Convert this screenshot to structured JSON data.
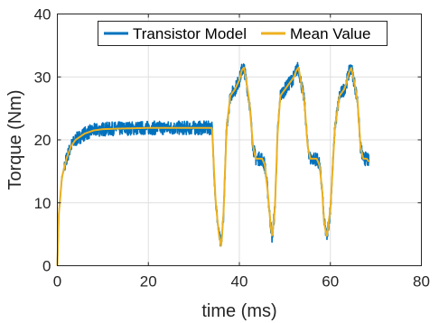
{
  "chart_data": {
    "type": "line",
    "title": "",
    "xlabel": "time (ms)",
    "ylabel": "Torque (Nm)",
    "xlim": [
      0,
      80
    ],
    "ylim": [
      0,
      40
    ],
    "xticks": [
      0,
      20,
      40,
      60,
      80
    ],
    "yticks": [
      0,
      10,
      20,
      30,
      40
    ],
    "grid": true,
    "legend_position": "top-center",
    "series": [
      {
        "name": "Transistor Model",
        "color": "#0072BD",
        "style": "noisy band around mean",
        "x": [
          0,
          0.3,
          1,
          2,
          3,
          4,
          6,
          8,
          10,
          14,
          20,
          26,
          30,
          34,
          34.3,
          34.8,
          35.5,
          36,
          36.5,
          37.2,
          38,
          39,
          40,
          40.5,
          41,
          41.6,
          42.2,
          43,
          43.6,
          44.2,
          45,
          45.6,
          46.2,
          46.8,
          47.2,
          47.8,
          48.4,
          49,
          50,
          51,
          52,
          52.5,
          53,
          53.6,
          54.3,
          55,
          55.6,
          56.2,
          57,
          57.6,
          58.2,
          58.6,
          59.2,
          60,
          61,
          62,
          63,
          63.5,
          64,
          64.6,
          65.3,
          66,
          66.6,
          67.2,
          68,
          68.5
        ],
        "y": [
          0,
          8,
          14,
          17,
          19,
          20,
          21,
          21.5,
          21.7,
          21.8,
          21.9,
          21.9,
          21.9,
          21.9,
          17,
          10,
          5,
          3,
          8,
          22,
          27,
          28,
          29.5,
          31,
          31.5,
          29,
          26,
          19,
          17,
          17,
          17,
          16,
          12,
          7,
          4.5,
          9,
          21,
          27,
          28,
          29,
          30,
          31,
          31.5,
          29,
          26,
          19,
          17,
          17,
          17,
          16,
          12,
          7,
          4.5,
          9,
          22,
          27,
          28,
          29,
          30.5,
          31.5,
          29,
          26,
          19,
          17,
          17,
          16.5
        ]
      },
      {
        "name": "Mean Value",
        "color": "#EDB120",
        "style": "smooth line",
        "x": [
          0,
          0.3,
          1,
          2,
          3,
          4,
          6,
          8,
          10,
          14,
          20,
          26,
          30,
          34,
          34.3,
          34.8,
          35.5,
          36,
          36.5,
          37.2,
          38,
          39,
          40,
          40.5,
          41,
          41.6,
          42.2,
          43,
          43.6,
          44.2,
          45,
          45.6,
          46.2,
          46.8,
          47.2,
          47.8,
          48.4,
          49,
          50,
          51,
          52,
          52.5,
          53,
          53.6,
          54.3,
          55,
          55.6,
          56.2,
          57,
          57.6,
          58.2,
          58.6,
          59.2,
          60,
          61,
          62,
          63,
          63.5,
          64,
          64.6,
          65.3,
          66,
          66.6,
          67.2,
          68,
          68.5
        ],
        "y": [
          0,
          8,
          14,
          17,
          19,
          20,
          21,
          21.5,
          21.7,
          21.8,
          21.9,
          21.9,
          21.9,
          21.9,
          17,
          10,
          5,
          3,
          8,
          22,
          27,
          28,
          29.5,
          31,
          31.5,
          29,
          26,
          19,
          17,
          17,
          17,
          16,
          12,
          7,
          4.5,
          9,
          21,
          27,
          28,
          29,
          30,
          31,
          31.5,
          29,
          26,
          19,
          17,
          17,
          17,
          16,
          12,
          7,
          4.5,
          9,
          22,
          27,
          28,
          29,
          30.5,
          31.5,
          29,
          26,
          19,
          17,
          17,
          16.5
        ]
      }
    ]
  }
}
